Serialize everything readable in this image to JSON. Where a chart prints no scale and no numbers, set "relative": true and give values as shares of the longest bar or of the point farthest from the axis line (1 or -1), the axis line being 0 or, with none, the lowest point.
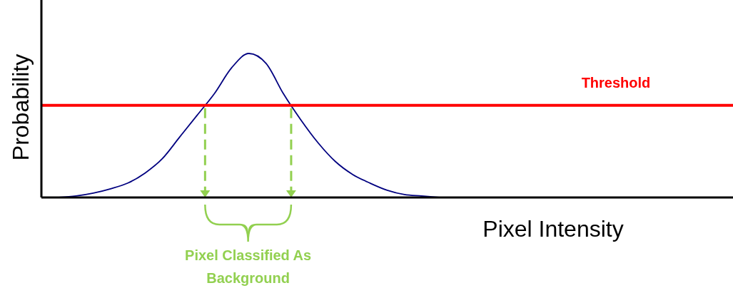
{
  "chart_data": {
    "type": "line",
    "relative": true,
    "xlabel": "Pixel Intensity",
    "ylabel": "Probability",
    "categories": [
      null,
      null,
      null,
      null,
      null,
      null,
      null,
      null,
      null,
      null,
      null,
      null,
      null,
      null,
      null,
      null,
      null,
      null,
      null,
      null,
      null,
      null,
      null,
      null,
      null,
      null,
      null,
      null,
      null,
      null,
      null,
      null,
      null,
      null,
      null,
      null,
      null,
      null,
      null,
      null,
      null
    ],
    "series": [
      {
        "color": "#000080",
        "values": [
          null,
          0,
          0.01,
          0.03,
          0.06,
          0.1,
          0.17,
          0.27,
          0.42,
          0.57,
          0.72,
          0.9,
          1,
          0.93,
          0.72,
          0.54,
          0.38,
          0.25,
          0.16,
          0.1,
          0.05,
          0.02,
          0.01,
          0,
          null,
          null,
          null,
          null,
          null,
          null,
          null,
          null,
          null,
          null,
          null,
          null,
          null,
          null,
          null,
          null,
          null
        ]
      }
    ],
    "ref_lines": [
      {
        "axis": "y",
        "value": 0.64,
        "label": "Threshold",
        "color": "#ff0000"
      }
    ],
    "annotations": [
      "Pixel Classified As Background"
    ],
    "marker": "none",
    "line_style": "solid"
  }
}
